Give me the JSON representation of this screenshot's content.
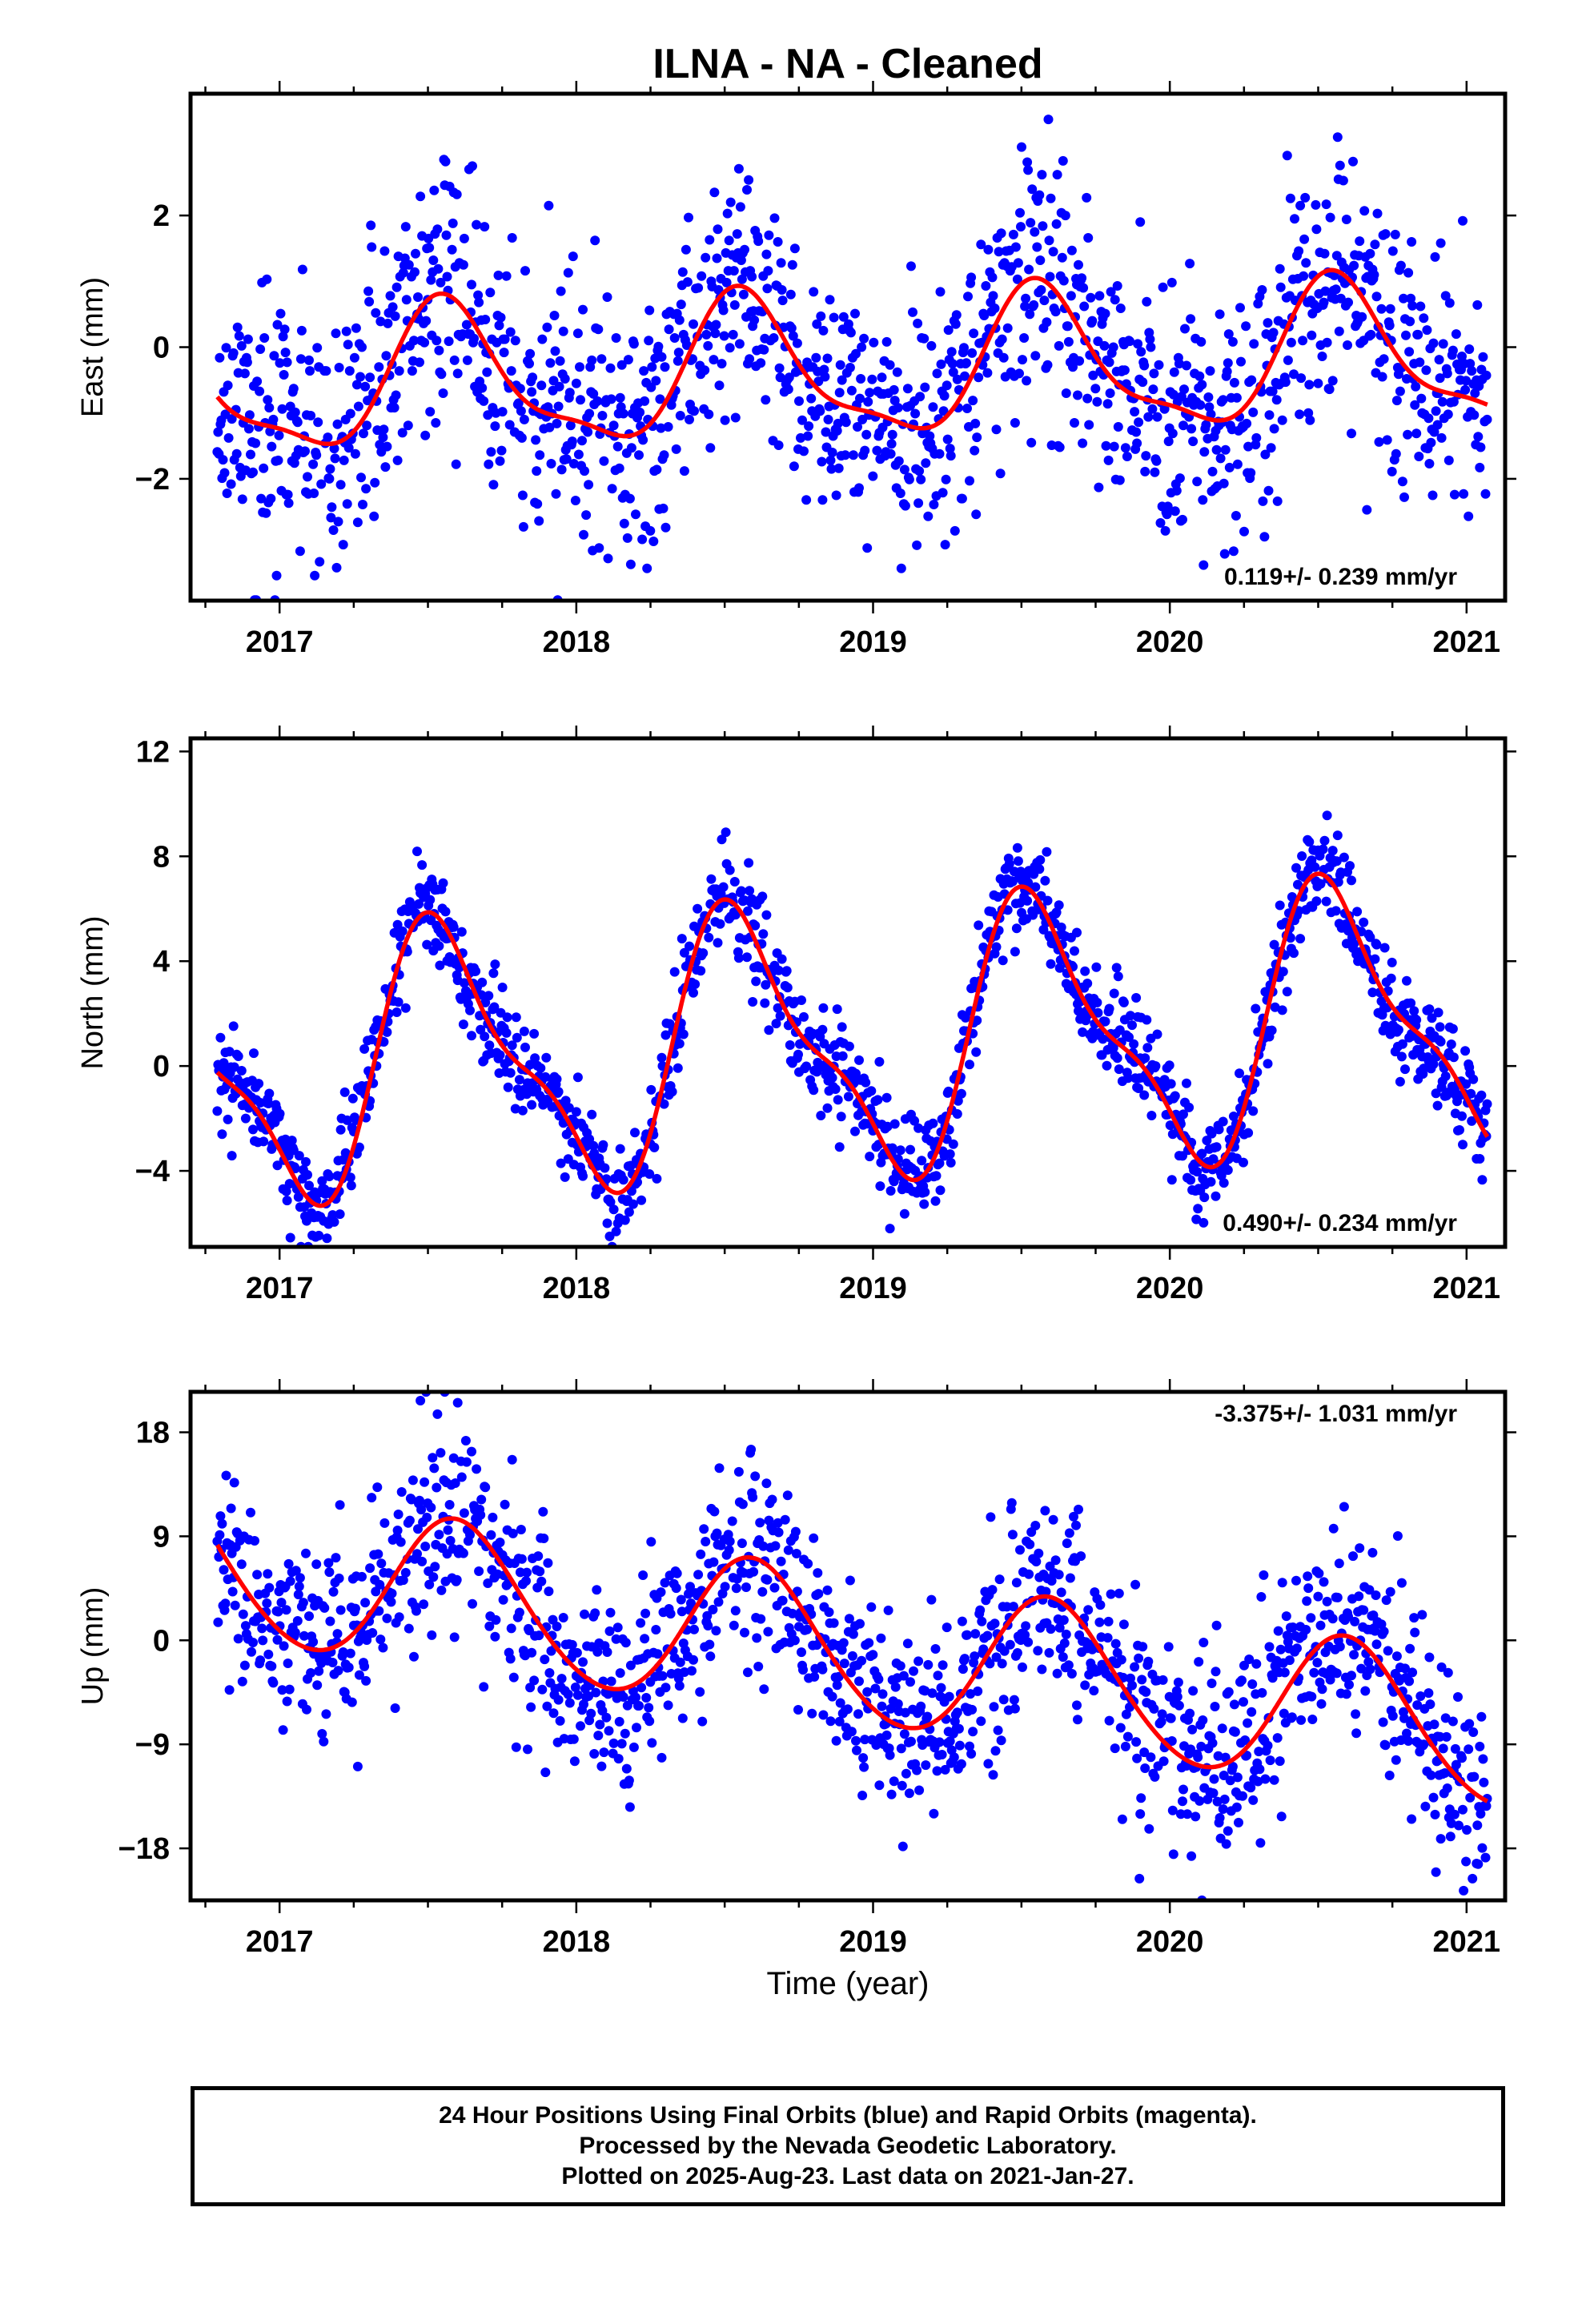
{
  "title": "ILNA  - NA - Cleaned",
  "xlabel": "Time (year)",
  "caption": {
    "line1": "24 Hour Positions Using Final Orbits (blue) and Rapid Orbits (magenta).",
    "line2": "Processed by the Nevada Geodetic Laboratory.",
    "line3": "Plotted on 2025-Aug-23. Last data on 2021-Jan-27."
  },
  "colors": {
    "points": "#0000ff",
    "fit": "#ff0000",
    "frame": "#000000"
  },
  "chart_data": [
    {
      "type": "scatter",
      "panel": "east",
      "ylabel": "East (mm)",
      "rate": "0.119+/- 0.239 mm/yr",
      "xlim": [
        2016.7,
        2021.13
      ],
      "ylim": [
        -3.85,
        3.85
      ],
      "x_ticks": [
        2017,
        2018,
        2019,
        2020,
        2021
      ],
      "x_tick_labels": [
        "2017",
        "2018",
        "2019",
        "2020",
        "2021"
      ],
      "y_ticks": [
        -2,
        0,
        2
      ],
      "y_tick_labels": [
        "−2",
        "0",
        "2"
      ],
      "fit_model": {
        "intercept": -0.35,
        "slope": 0.119,
        "cos1": -0.95,
        "sin1": -0.42,
        "cos2": 0.3,
        "sin2": 0.1,
        "t0": 2019.0
      },
      "noise_sd": 0.95,
      "seed": 11,
      "series": [
        {
          "name": "Final Orbits",
          "values": []
        },
        {
          "name": "fit",
          "values": []
        }
      ]
    },
    {
      "type": "scatter",
      "panel": "north",
      "ylabel": "North (mm)",
      "rate": "0.490+/- 0.234 mm/yr",
      "xlim": [
        2016.7,
        2021.13
      ],
      "ylim": [
        -6.9,
        12.5
      ],
      "x_ticks": [
        2017,
        2018,
        2019,
        2020,
        2021
      ],
      "x_tick_labels": [
        "2017",
        "2018",
        "2019",
        "2020",
        "2021"
      ],
      "y_ticks": [
        -4,
        0,
        4,
        8,
        12
      ],
      "y_tick_labels": [
        "−4",
        "0",
        "4",
        "8",
        "12"
      ],
      "fit_model": {
        "intercept": 0.9,
        "slope": 0.49,
        "cos1": -4.4,
        "sin1": -1.8,
        "cos2": 1.3,
        "sin2": -0.9,
        "t0": 2019.0
      },
      "noise_sd": 0.95,
      "seed": 23,
      "series": [
        {
          "name": "Final Orbits",
          "values": []
        },
        {
          "name": "fit",
          "values": []
        }
      ]
    },
    {
      "type": "scatter",
      "panel": "up",
      "ylabel": "Up (mm)",
      "rate": "-3.375+/- 1.031 mm/yr",
      "xlim": [
        2016.7,
        2021.13
      ],
      "ylim": [
        -22.5,
        21.5
      ],
      "x_ticks": [
        2017,
        2018,
        2019,
        2020,
        2021
      ],
      "x_tick_labels": [
        "2017",
        "2018",
        "2019",
        "2020",
        "2021"
      ],
      "y_ticks": [
        -18,
        -9,
        0,
        9,
        18
      ],
      "y_tick_labels": [
        "−18",
        "−9",
        "0",
        "9",
        "18"
      ],
      "fit_model": {
        "intercept": -1.1,
        "slope": -3.375,
        "cos1": -5.2,
        "sin1": -3.8,
        "cos2": 0.4,
        "sin2": 0.3,
        "t0": 2019.0
      },
      "noise_sd": 4.3,
      "seed": 37,
      "series": [
        {
          "name": "Final Orbits",
          "values": []
        },
        {
          "name": "fit",
          "values": []
        }
      ]
    }
  ]
}
